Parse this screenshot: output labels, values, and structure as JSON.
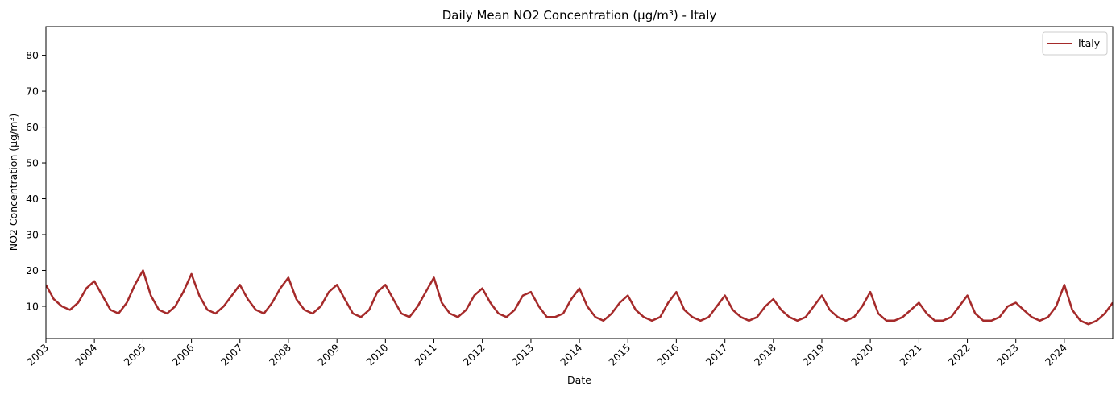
{
  "chart_data": {
    "type": "line",
    "title": "Daily Mean NO2 Concentration (µg/m³) - Italy",
    "xlabel": "Date",
    "ylabel": "NO2 Concentration (µg/m³)",
    "xlim": [
      "2003-01-01",
      "2024-12-31"
    ],
    "ylim": [
      1,
      88
    ],
    "y_ticks": [
      10,
      20,
      30,
      40,
      50,
      60,
      70,
      80
    ],
    "x_ticks": [
      "2003",
      "2004",
      "2005",
      "2006",
      "2007",
      "2008",
      "2009",
      "2010",
      "2011",
      "2012",
      "2013",
      "2014",
      "2015",
      "2016",
      "2017",
      "2018",
      "2019",
      "2020",
      "2021",
      "2022",
      "2023",
      "2024"
    ],
    "grid": false,
    "legend": {
      "position": "top-right",
      "entries": [
        "Italy"
      ]
    },
    "color": "#a52a2a",
    "series": [
      {
        "name": "Italy",
        "x": [
          "2003-01-01",
          "2003-03-01",
          "2003-05-01",
          "2003-07-01",
          "2003-09-01",
          "2003-11-01",
          "2004-01-01",
          "2004-03-01",
          "2004-05-01",
          "2004-07-01",
          "2004-09-01",
          "2004-11-01",
          "2005-01-01",
          "2005-03-01",
          "2005-05-01",
          "2005-07-01",
          "2005-09-01",
          "2005-11-01",
          "2006-01-01",
          "2006-03-01",
          "2006-05-01",
          "2006-07-01",
          "2006-09-01",
          "2006-11-01",
          "2007-01-01",
          "2007-03-01",
          "2007-05-01",
          "2007-07-01",
          "2007-09-01",
          "2007-11-01",
          "2008-01-01",
          "2008-03-01",
          "2008-05-01",
          "2008-07-01",
          "2008-09-01",
          "2008-11-01",
          "2009-01-01",
          "2009-03-01",
          "2009-05-01",
          "2009-07-01",
          "2009-09-01",
          "2009-11-01",
          "2010-01-01",
          "2010-03-01",
          "2010-05-01",
          "2010-07-01",
          "2010-09-01",
          "2010-11-01",
          "2011-01-01",
          "2011-03-01",
          "2011-05-01",
          "2011-07-01",
          "2011-09-01",
          "2011-11-01",
          "2012-01-01",
          "2012-03-01",
          "2012-05-01",
          "2012-07-01",
          "2012-09-01",
          "2012-11-01",
          "2013-01-01",
          "2013-03-01",
          "2013-05-01",
          "2013-07-01",
          "2013-09-01",
          "2013-11-01",
          "2014-01-01",
          "2014-03-01",
          "2014-05-01",
          "2014-07-01",
          "2014-09-01",
          "2014-11-01",
          "2015-01-01",
          "2015-03-01",
          "2015-05-01",
          "2015-07-01",
          "2015-09-01",
          "2015-11-01",
          "2016-01-01",
          "2016-03-01",
          "2016-05-01",
          "2016-07-01",
          "2016-09-01",
          "2016-11-01",
          "2017-01-01",
          "2017-03-01",
          "2017-05-01",
          "2017-07-01",
          "2017-09-01",
          "2017-11-01",
          "2018-01-01",
          "2018-03-01",
          "2018-05-01",
          "2018-07-01",
          "2018-09-01",
          "2018-11-01",
          "2019-01-01",
          "2019-03-01",
          "2019-05-01",
          "2019-07-01",
          "2019-09-01",
          "2019-11-01",
          "2020-01-01",
          "2020-03-01",
          "2020-05-01",
          "2020-07-01",
          "2020-09-01",
          "2020-11-01",
          "2021-01-01",
          "2021-03-01",
          "2021-05-01",
          "2021-07-01",
          "2021-09-01",
          "2021-11-01",
          "2022-01-01",
          "2022-03-01",
          "2022-05-01",
          "2022-07-01",
          "2022-09-01",
          "2022-11-01",
          "2023-01-01",
          "2023-03-01",
          "2023-05-01",
          "2023-07-01",
          "2023-09-01",
          "2023-11-01",
          "2024-01-01",
          "2024-03-01",
          "2024-05-01",
          "2024-07-01",
          "2024-09-01",
          "2024-11-01",
          "2024-12-31"
        ],
        "y": [
          16,
          12,
          10,
          9,
          11,
          15,
          17,
          13,
          9,
          8,
          11,
          16,
          20,
          13,
          9,
          8,
          10,
          14,
          19,
          13,
          9,
          8,
          10,
          13,
          16,
          12,
          9,
          8,
          11,
          15,
          18,
          12,
          9,
          8,
          10,
          14,
          16,
          12,
          8,
          7,
          9,
          14,
          16,
          12,
          8,
          7,
          10,
          14,
          18,
          11,
          8,
          7,
          9,
          13,
          15,
          11,
          8,
          7,
          9,
          13,
          14,
          10,
          7,
          7,
          8,
          12,
          15,
          10,
          7,
          6,
          8,
          11,
          13,
          9,
          7,
          6,
          7,
          11,
          14,
          9,
          7,
          6,
          7,
          10,
          13,
          9,
          7,
          6,
          7,
          10,
          12,
          9,
          7,
          6,
          7,
          10,
          13,
          9,
          7,
          6,
          7,
          10,
          14,
          8,
          6,
          6,
          7,
          9,
          11,
          8,
          6,
          6,
          7,
          10,
          13,
          8,
          6,
          6,
          7,
          10,
          11,
          9,
          7,
          6,
          7,
          10,
          16,
          9,
          6,
          5,
          6,
          8,
          11
        ]
      }
    ]
  }
}
